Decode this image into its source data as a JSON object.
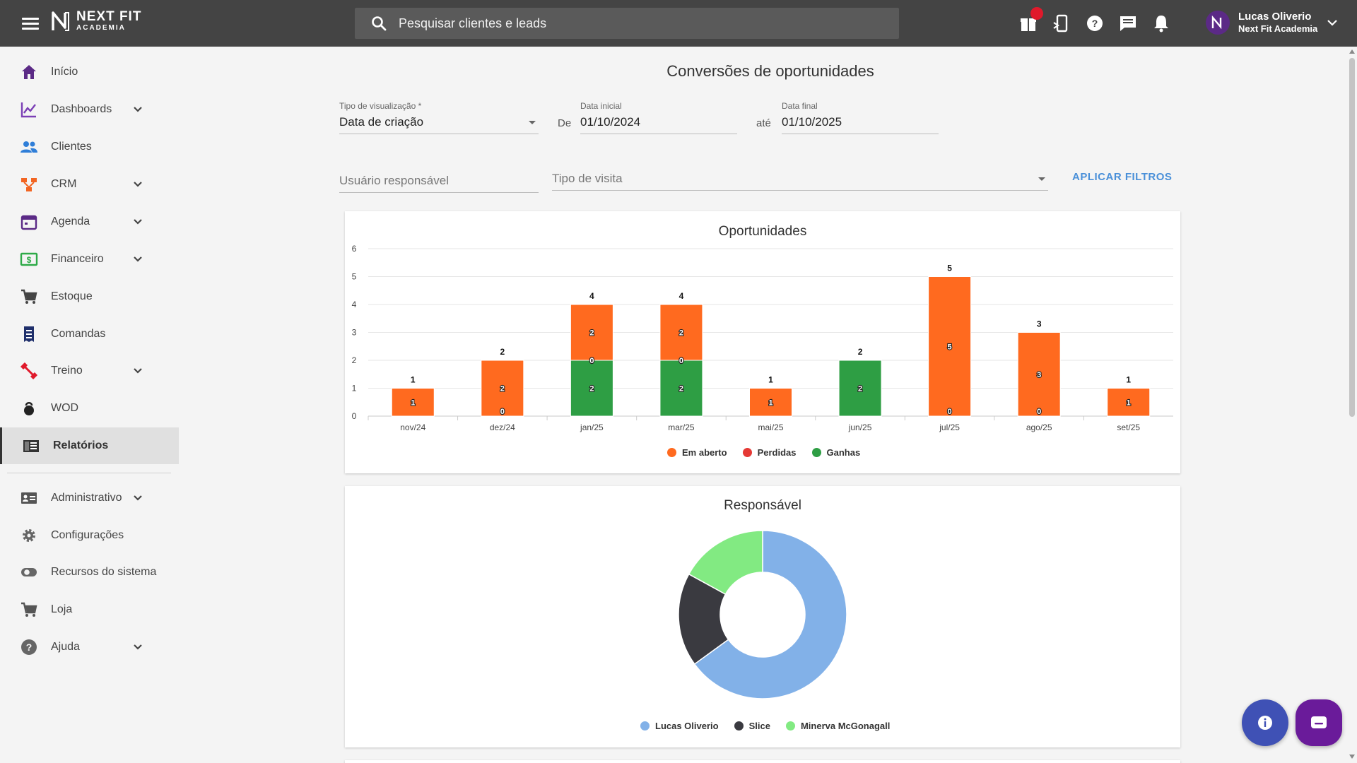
{
  "header": {
    "brand_name": "NEXT FIT",
    "brand_sub": "ACADEMIA",
    "search_placeholder": "Pesquisar clientes e leads",
    "icons": [
      "gift-icon",
      "mobile-icon",
      "help-icon",
      "chat-icon",
      "bell-icon"
    ],
    "user_name": "Lucas Oliverio",
    "user_org": "Next Fit Academia"
  },
  "sidebar": {
    "items": [
      {
        "label": "Início",
        "icon": "home-icon",
        "color": "#5b2a86",
        "expandable": false
      },
      {
        "label": "Dashboards",
        "icon": "chart-line-icon",
        "color": "#7b3fb5",
        "expandable": true
      },
      {
        "label": "Clientes",
        "icon": "people-icon",
        "color": "#2f7ed8",
        "expandable": false
      },
      {
        "label": "CRM",
        "icon": "crm-icon",
        "color": "#f26522",
        "expandable": true
      },
      {
        "label": "Agenda",
        "icon": "calendar-icon",
        "color": "#5b2a86",
        "expandable": true
      },
      {
        "label": "Financeiro",
        "icon": "money-icon",
        "color": "#2eaa48",
        "expandable": true
      },
      {
        "label": "Estoque",
        "icon": "cart-icon",
        "color": "#444444",
        "expandable": false
      },
      {
        "label": "Comandas",
        "icon": "receipt-icon",
        "color": "#1f2f6b",
        "expandable": false
      },
      {
        "label": "Treino",
        "icon": "dumbbell-icon",
        "color": "#e0192b",
        "expandable": true
      },
      {
        "label": "WOD",
        "icon": "kettlebell-icon",
        "color": "#222222",
        "expandable": false
      },
      {
        "label": "Relatórios",
        "icon": "report-icon",
        "color": "#333333",
        "expandable": false,
        "active": true
      },
      {
        "label": "Administrativo",
        "icon": "id-card-icon",
        "color": "#555555",
        "expandable": true
      },
      {
        "label": "Configurações",
        "icon": "gear-icon",
        "color": "#666666",
        "expandable": false
      },
      {
        "label": "Recursos do sistema",
        "icon": "toggle-icon",
        "color": "#666666",
        "expandable": false
      },
      {
        "label": "Loja",
        "icon": "cart-icon",
        "color": "#555555",
        "expandable": false
      },
      {
        "label": "Ajuda",
        "icon": "help-icon",
        "color": "#666666",
        "expandable": true
      }
    ]
  },
  "main": {
    "title": "Conversões de oportunidades",
    "filters": {
      "view_type_label": "Tipo de visualização *",
      "view_type_value": "Data de criação",
      "from_label": "De",
      "start_label": "Data inicial",
      "start_value": "01/10/2024",
      "to_label": "até",
      "end_label": "Data final",
      "end_value": "01/10/2025",
      "user_placeholder": "Usuário responsável",
      "visit_placeholder": "Tipo de visita",
      "apply_label": "APLICAR FILTROS"
    }
  },
  "colors": {
    "open": "#ff6a1f",
    "lost": "#e53935",
    "won": "#2e9e44",
    "accent": "#4a90d9"
  },
  "chart_data": [
    {
      "type": "bar",
      "stacked": true,
      "title": "Oportunidades",
      "categories": [
        "nov/24",
        "dez/24",
        "jan/25",
        "mar/25",
        "mai/25",
        "jun/25",
        "jul/25",
        "ago/25",
        "set/25"
      ],
      "series": [
        {
          "name": "Em aberto",
          "color": "#ff6a1f",
          "values": [
            1,
            2,
            2,
            2,
            1,
            0,
            5,
            3,
            1
          ]
        },
        {
          "name": "Perdidas",
          "color": "#e53935",
          "values": [
            0,
            0,
            0,
            0,
            0,
            0,
            0,
            0,
            0
          ]
        },
        {
          "name": "Ganhas",
          "color": "#2e9e44",
          "values": [
            0,
            0,
            2,
            2,
            0,
            2,
            0,
            0,
            0
          ]
        }
      ],
      "totals": [
        1,
        2,
        4,
        4,
        1,
        2,
        5,
        3,
        1
      ],
      "segment_labels": [
        [
          "1"
        ],
        [
          "2",
          "0"
        ],
        [
          "2",
          "0",
          "2"
        ],
        [
          "2",
          "0",
          "2"
        ],
        [
          "1"
        ],
        [
          "2"
        ],
        [
          "5",
          "0"
        ],
        [
          "3",
          "0"
        ],
        [
          "1"
        ]
      ],
      "ylim": [
        0,
        6
      ],
      "yticks": [
        "0",
        "1",
        "2",
        "3",
        "4",
        "5",
        "6"
      ],
      "grid": true,
      "legend": "bottom-center"
    },
    {
      "type": "pie",
      "donut": true,
      "title": "Responsável",
      "labels": [
        "Lucas Oliverio",
        "Slice",
        "Minerva McGonagall"
      ],
      "values": [
        65,
        18,
        17
      ],
      "colors": [
        "#82b1e8",
        "#3a3a40",
        "#82ea82"
      ],
      "legend": "bottom-center"
    }
  ]
}
